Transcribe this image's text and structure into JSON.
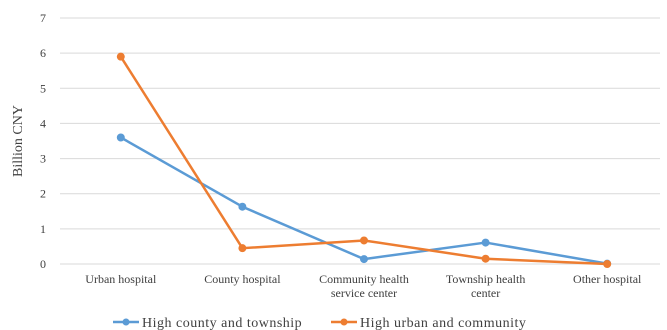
{
  "chart_data": {
    "type": "line",
    "ylabel": "Billion CNY",
    "ylim": [
      0,
      7
    ],
    "yticks": [
      "0",
      "1",
      "2",
      "3",
      "4",
      "5",
      "6",
      "7"
    ],
    "grid": true,
    "legend_position": "bottom",
    "categories": [
      [
        "Urban hospital"
      ],
      [
        "County hospital"
      ],
      [
        "Community health",
        "service center"
      ],
      [
        "Township health",
        "center"
      ],
      [
        "Other hospital"
      ]
    ],
    "series": [
      {
        "name": "High county and township",
        "color": "#5b9bd5",
        "values": [
          3.6,
          1.63,
          0.14,
          0.61,
          0.01
        ]
      },
      {
        "name": "High urban and community",
        "color": "#ed7d31",
        "values": [
          5.9,
          0.45,
          0.67,
          0.15,
          0.0
        ]
      }
    ]
  }
}
